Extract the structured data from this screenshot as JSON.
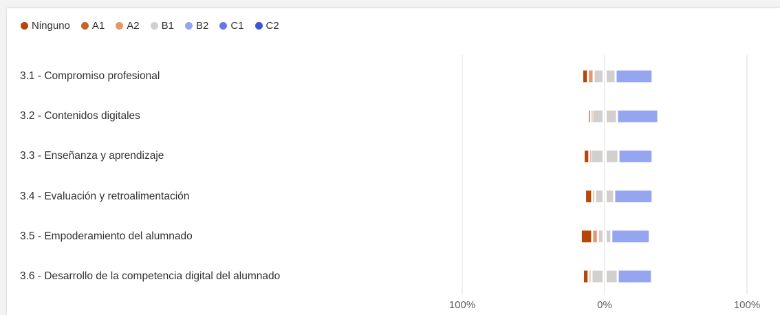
{
  "chart_data": {
    "type": "bar",
    "orientation": "horizontal",
    "stacked": "diverging",
    "title": "",
    "xlabel": "",
    "ylabel": "",
    "legend_position": "top-left",
    "grid": false,
    "x_ticks": [
      "100%",
      "0%",
      "100%"
    ],
    "xlim": [
      -100,
      100
    ],
    "categories": [
      "3.1 - Compromiso profesional",
      "3.2 - Contenidos digitales",
      "3.3 - Enseñanza y aprendizaje",
      "3.4 - Evaluación y retroalimentación",
      "3.5 - Empoderamiento del alumnado",
      "3.6 - Desarrollo de la competencia digital del alumnado"
    ],
    "series": [
      {
        "name": "Ninguno",
        "color": "#b54708",
        "values": [
          4,
          2,
          4,
          5,
          8,
          4
        ]
      },
      {
        "name": "A1",
        "color": "#c8622a",
        "values": [
          0,
          0,
          0,
          0,
          0,
          0
        ]
      },
      {
        "name": "A2",
        "color": "#e8956e",
        "values": [
          4,
          1,
          1,
          2,
          4,
          2
        ]
      },
      {
        "name": "B1",
        "color": "#d2d0ce",
        "values": [
          14,
          16,
          18,
          12,
          8,
          17
        ]
      },
      {
        "name": "B2",
        "color": "#95a5f0",
        "values": [
          26,
          29,
          24,
          27,
          27,
          24
        ]
      },
      {
        "name": "C1",
        "color": "#6776e8",
        "values": [
          0,
          0,
          0,
          0,
          0,
          0
        ]
      },
      {
        "name": "C2",
        "color": "#3f51d6",
        "values": [
          0,
          0,
          0,
          0,
          0,
          0
        ]
      }
    ]
  }
}
